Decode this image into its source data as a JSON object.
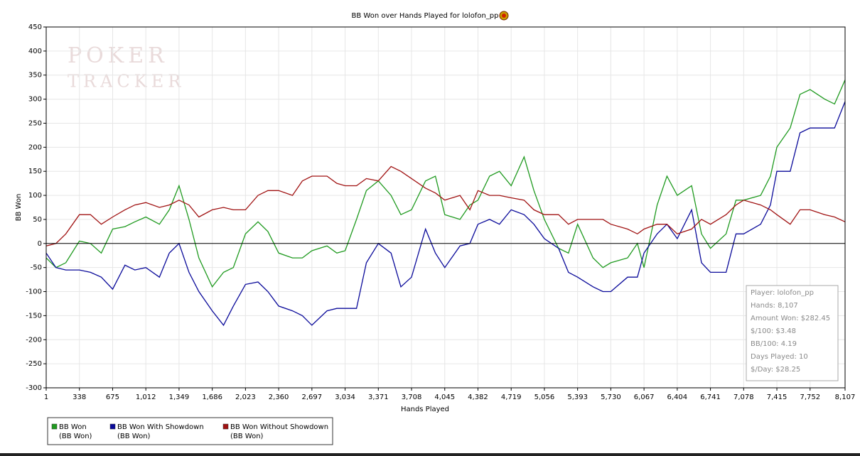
{
  "chart_data": {
    "type": "line",
    "title": "BB Won over Hands Played for lolofon_pp",
    "xlabel": "Hands Played",
    "ylabel": "BB Won",
    "watermark": [
      "POKER",
      "TRACKER"
    ],
    "xlim": [
      1,
      8107
    ],
    "ylim": [
      -300,
      450
    ],
    "yticks": [
      -300,
      -250,
      -200,
      -150,
      -100,
      -50,
      0,
      50,
      100,
      150,
      200,
      250,
      300,
      350,
      400,
      450
    ],
    "xticks": [
      1,
      338,
      675,
      {
        "value": 1012,
        "label": "1,012"
      },
      {
        "value": 1349,
        "label": "1,349"
      },
      {
        "value": 1686,
        "label": "1,686"
      },
      {
        "value": 2023,
        "label": "2,023"
      },
      {
        "value": 2360,
        "label": "2,360"
      },
      {
        "value": 2697,
        "label": "2,697"
      },
      {
        "value": 3034,
        "label": "3,034"
      },
      {
        "value": 3371,
        "label": "3,371"
      },
      {
        "value": 3708,
        "label": "3,708"
      },
      {
        "value": 4045,
        "label": "4,045"
      },
      {
        "value": 4382,
        "label": "4,382"
      },
      {
        "value": 4719,
        "label": "4,719"
      },
      {
        "value": 5056,
        "label": "5,056"
      },
      {
        "value": 5393,
        "label": "5,393"
      },
      {
        "value": 5730,
        "label": "5,730"
      },
      {
        "value": 6067,
        "label": "6,067"
      },
      {
        "value": 6404,
        "label": "6,404"
      },
      {
        "value": 6741,
        "label": "6,741"
      },
      {
        "value": 7078,
        "label": "7,078"
      },
      {
        "value": 7415,
        "label": "7,415"
      },
      {
        "value": 7752,
        "label": "7,752"
      },
      {
        "value": 8107,
        "label": "8,107"
      }
    ],
    "grid": true,
    "x": [
      1,
      100,
      200,
      338,
      450,
      560,
      675,
      800,
      900,
      1012,
      1150,
      1250,
      1349,
      1450,
      1550,
      1686,
      1800,
      1900,
      2023,
      2150,
      2250,
      2360,
      2500,
      2600,
      2697,
      2850,
      2950,
      3034,
      3150,
      3250,
      3371,
      3500,
      3600,
      3708,
      3850,
      3950,
      4045,
      4200,
      4300,
      4382,
      4500,
      4600,
      4719,
      4850,
      4950,
      5056,
      5200,
      5300,
      5393,
      5550,
      5650,
      5730,
      5900,
      6000,
      6067,
      6200,
      6300,
      6404,
      6550,
      6650,
      6741,
      6900,
      7000,
      7078,
      7250,
      7350,
      7415,
      7550,
      7650,
      7752,
      7900,
      8000,
      8107
    ],
    "series": [
      {
        "name": "BB Won",
        "sublabel": "(BB Won)",
        "color": "#1f9a1f",
        "values": [
          -30,
          -50,
          -40,
          5,
          0,
          -20,
          30,
          35,
          45,
          55,
          40,
          70,
          120,
          50,
          -30,
          -90,
          -60,
          -50,
          20,
          45,
          25,
          -20,
          -30,
          -30,
          -15,
          -5,
          -20,
          -15,
          50,
          110,
          130,
          100,
          60,
          70,
          130,
          140,
          60,
          50,
          80,
          90,
          140,
          150,
          120,
          180,
          110,
          50,
          -10,
          -20,
          40,
          -30,
          -50,
          -40,
          -30,
          0,
          -50,
          80,
          140,
          100,
          120,
          20,
          -10,
          20,
          90,
          90,
          100,
          140,
          200,
          240,
          310,
          320,
          300,
          290,
          340
        ]
      },
      {
        "name": "BB Won With Showdown",
        "sublabel": "(BB Won)",
        "color": "#0a0a9a",
        "values": [
          -20,
          -50,
          -55,
          -55,
          -60,
          -70,
          -95,
          -45,
          -55,
          -50,
          -70,
          -20,
          0,
          -60,
          -100,
          -140,
          -170,
          -130,
          -85,
          -80,
          -100,
          -130,
          -140,
          -150,
          -170,
          -140,
          -135,
          -135,
          -135,
          -40,
          0,
          -20,
          -90,
          -70,
          30,
          -20,
          -50,
          -5,
          0,
          40,
          50,
          40,
          70,
          60,
          40,
          10,
          -10,
          -60,
          -70,
          -90,
          -100,
          -100,
          -70,
          -70,
          -20,
          20,
          40,
          10,
          70,
          -40,
          -60,
          -60,
          20,
          20,
          40,
          80,
          150,
          150,
          230,
          240,
          240,
          240,
          295
        ]
      },
      {
        "name": "BB Won Without Showdown",
        "sublabel": "(BB Won)",
        "color": "#a01212",
        "values": [
          -5,
          0,
          20,
          60,
          60,
          40,
          55,
          70,
          80,
          85,
          75,
          80,
          90,
          80,
          55,
          70,
          75,
          70,
          70,
          100,
          110,
          110,
          100,
          130,
          140,
          140,
          125,
          120,
          120,
          135,
          130,
          160,
          150,
          135,
          115,
          105,
          90,
          100,
          70,
          110,
          100,
          100,
          95,
          90,
          70,
          60,
          60,
          40,
          50,
          50,
          50,
          40,
          30,
          20,
          30,
          40,
          40,
          20,
          30,
          50,
          40,
          60,
          80,
          90,
          80,
          70,
          60,
          40,
          70,
          70,
          60,
          55,
          45
        ]
      }
    ],
    "annotations": [
      "Player: lolofon_pp",
      "Hands: 8,107",
      "Amount Won: $282.45",
      "$/100: $3.48",
      "BB/100: 4.19",
      "Days Played: 10",
      "$/Day: $28.25"
    ]
  }
}
